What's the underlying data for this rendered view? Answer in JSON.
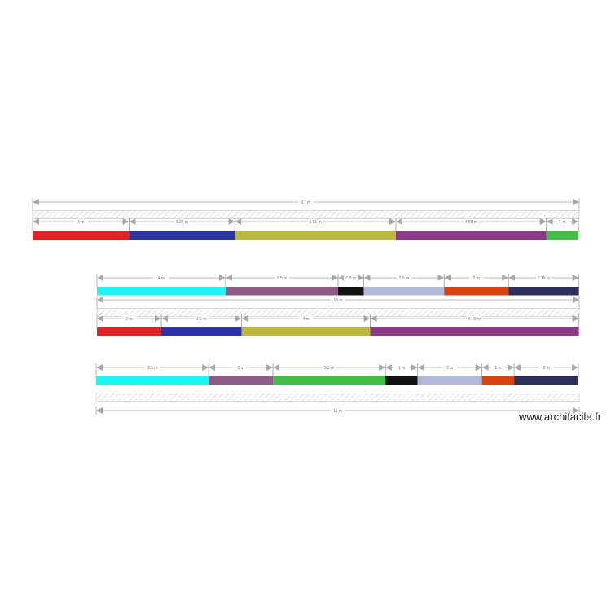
{
  "watermark": "www.archifacile.fr",
  "colors": {
    "dimension": "#a8a8a8",
    "hatch": "#b5b5b5"
  },
  "rows": [
    {
      "total_label": "17 m",
      "groups": [
        {
          "segments": [
            {
              "label": "3 m",
              "color": "#dd2323"
            },
            {
              "label": "3.29 m",
              "color": "#2b34a1"
            },
            {
              "label": "5.01 m",
              "color": "#bdb843"
            },
            {
              "label": "4.68 m",
              "color": "#8b3b86"
            },
            {
              "label": "1 m",
              "color": "#45bc45"
            }
          ]
        }
      ]
    },
    {
      "total_label": "15 m",
      "groups": [
        {
          "segments": [
            {
              "label": "4 m",
              "color": "#1ff4f4"
            },
            {
              "label": "3.5 m",
              "color": "#8c5b86"
            },
            {
              "label": "0.8 m",
              "color": "#121414"
            },
            {
              "label": "2.5 m",
              "color": "#b1b9d8"
            },
            {
              "label": "2 m",
              "color": "#d8420f"
            },
            {
              "label": "2.19 m",
              "color": "#2c2f5c"
            }
          ]
        },
        {
          "segments": [
            {
              "label": "2 m",
              "color": "#dd2323"
            },
            {
              "label": "2.5 m",
              "color": "#2b34a1"
            },
            {
              "label": "4 m",
              "color": "#bdb843"
            },
            {
              "label": "6.49 m",
              "color": "#8b3b86"
            }
          ]
        }
      ]
    },
    {
      "total_label": "15 m",
      "groups": [
        {
          "segments": [
            {
              "label": "3.5 m",
              "color": "#1ff4f4"
            },
            {
              "label": "2 m",
              "color": "#8c5b86"
            },
            {
              "label": "3.5 m",
              "color": "#45bc45"
            },
            {
              "label": "1 m",
              "color": "#121414"
            },
            {
              "label": "2 m",
              "color": "#b1b9d8"
            },
            {
              "label": "1 m",
              "color": "#d8420f"
            },
            {
              "label": "2 m",
              "color": "#2c2f5c"
            }
          ]
        }
      ]
    }
  ]
}
